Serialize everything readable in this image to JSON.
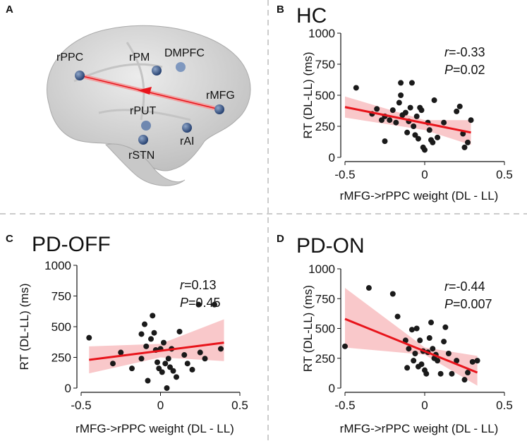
{
  "panel_labels": [
    "A",
    "B",
    "C",
    "D"
  ],
  "brain": {
    "nodes": [
      "rPPC",
      "rPM",
      "DMPFC",
      "rMFG",
      "rPUT",
      "rAI",
      "rSTN"
    ]
  },
  "chart_data": [
    {
      "type": "scatter",
      "title": "HC",
      "annotations": [
        {
          "italic": "r",
          "text": "=-0.33"
        },
        {
          "italic": "P",
          "text": "=0.02"
        }
      ],
      "x_label": "rMFG->rPPC weight (DL - LL)",
      "y_label": "RT (DL-LL) (ms)",
      "xlim": [
        -0.5,
        0.5
      ],
      "ylim": [
        0,
        1000
      ],
      "xticks": [
        -0.5,
        0,
        0.5
      ],
      "yticks": [
        0,
        250,
        500,
        750,
        1000
      ],
      "color": "#1a1a1a",
      "x": [
        -0.43,
        -0.33,
        -0.3,
        -0.27,
        -0.25,
        -0.22,
        -0.2,
        -0.18,
        -0.16,
        -0.15,
        -0.14,
        -0.12,
        -0.11,
        -0.1,
        -0.09,
        -0.08,
        -0.15,
        -0.07,
        -0.06,
        -0.05,
        -0.04,
        -0.03,
        -0.02,
        -0.01,
        0,
        0.02,
        0.03,
        0.04,
        0.05,
        0.06,
        0.08,
        0.12,
        0.2,
        0.22,
        0.24,
        0.25,
        0.27,
        0.29,
        -0.25
      ],
      "y": [
        560,
        350,
        390,
        300,
        330,
        300,
        380,
        280,
        440,
        500,
        340,
        360,
        200,
        290,
        400,
        600,
        600,
        250,
        180,
        330,
        150,
        400,
        380,
        80,
        60,
        280,
        220,
        140,
        120,
        460,
        160,
        280,
        370,
        410,
        190,
        80,
        120,
        300,
        130
      ],
      "fit": {
        "color": "#e8141b",
        "x": [
          -0.5,
          0.29
        ],
        "y": [
          405,
          200
        ]
      },
      "ci": {
        "color": "#f7b5b8",
        "x": [
          -0.5,
          0,
          0.29
        ],
        "lower": [
          320,
          220,
          100
        ],
        "upper": [
          490,
          300,
          300
        ]
      }
    },
    {
      "type": "scatter",
      "title": "PD-OFF",
      "annotations": [
        {
          "italic": "r",
          "text": "=0.13"
        },
        {
          "italic": "P",
          "text": "=0.45"
        }
      ],
      "x_label": "rMFG->rPPC weight (DL - LL)",
      "y_label": "RT (DL-LL) (ms)",
      "xlim": [
        -0.5,
        0.5
      ],
      "ylim": [
        0,
        1000
      ],
      "xticks": [
        -0.5,
        0,
        0.5
      ],
      "yticks": [
        0,
        250,
        500,
        750,
        1000
      ],
      "color": "#1a1a1a",
      "x": [
        -0.45,
        -0.3,
        -0.25,
        -0.18,
        -0.12,
        -0.1,
        -0.08,
        -0.06,
        -0.05,
        -0.04,
        -0.03,
        -0.02,
        -0.01,
        0,
        0.01,
        0.02,
        0.03,
        0.05,
        0.06,
        0.08,
        0.1,
        0.12,
        0.15,
        0.17,
        0.2,
        0.24,
        0.25,
        0.28,
        0.34,
        0.38,
        -0.12,
        -0.09,
        0.04,
        0.07
      ],
      "y": [
        410,
        200,
        290,
        160,
        240,
        520,
        60,
        400,
        590,
        450,
        310,
        210,
        160,
        320,
        130,
        370,
        200,
        240,
        170,
        140,
        90,
        460,
        270,
        200,
        150,
        680,
        290,
        240,
        680,
        320,
        440,
        340,
        0,
        320
      ],
      "fit": {
        "color": "#e8141b",
        "x": [
          -0.45,
          0.4
        ],
        "y": [
          230,
          370
        ]
      },
      "ci": {
        "color": "#f7b5b8",
        "x": [
          -0.45,
          0,
          0.4
        ],
        "lower": [
          120,
          250,
          220
        ],
        "upper": [
          340,
          360,
          560
        ]
      }
    },
    {
      "type": "scatter",
      "title": "PD-ON",
      "annotations": [
        {
          "italic": "r",
          "text": "=-0.44"
        },
        {
          "italic": "P",
          "text": "=0.007"
        }
      ],
      "x_label": "rMFG->rPPC weight (DL - LL)",
      "y_label": "RT (DL-LL) (ms)",
      "xlim": [
        -0.5,
        0.5
      ],
      "ylim": [
        0,
        1000
      ],
      "xticks": [
        -0.5,
        0,
        0.5
      ],
      "yticks": [
        0,
        250,
        500,
        750,
        1000
      ],
      "color": "#1a1a1a",
      "x": [
        -0.5,
        -0.35,
        -0.2,
        -0.17,
        -0.12,
        -0.1,
        -0.08,
        -0.06,
        -0.05,
        -0.04,
        -0.03,
        -0.02,
        -0.01,
        0,
        0.01,
        0.02,
        0.03,
        0.04,
        0.05,
        0.06,
        0.07,
        0.08,
        0.1,
        0.12,
        0.13,
        0.15,
        0.17,
        0.2,
        0.25,
        0.27,
        0.3,
        0.33,
        -0.07,
        -0.11
      ],
      "y": [
        350,
        840,
        790,
        600,
        400,
        330,
        490,
        290,
        500,
        180,
        400,
        200,
        310,
        150,
        120,
        300,
        420,
        550,
        330,
        250,
        280,
        230,
        120,
        390,
        510,
        290,
        120,
        230,
        70,
        130,
        220,
        230,
        230,
        170
      ],
      "fit": {
        "color": "#e8141b",
        "x": [
          -0.5,
          0.33
        ],
        "y": [
          580,
          130
        ]
      },
      "ci": {
        "color": "#f7b5b8",
        "x": [
          -0.5,
          0,
          0.33
        ],
        "lower": [
          340,
          280,
          20
        ],
        "upper": [
          840,
          340,
          270
        ]
      }
    }
  ]
}
